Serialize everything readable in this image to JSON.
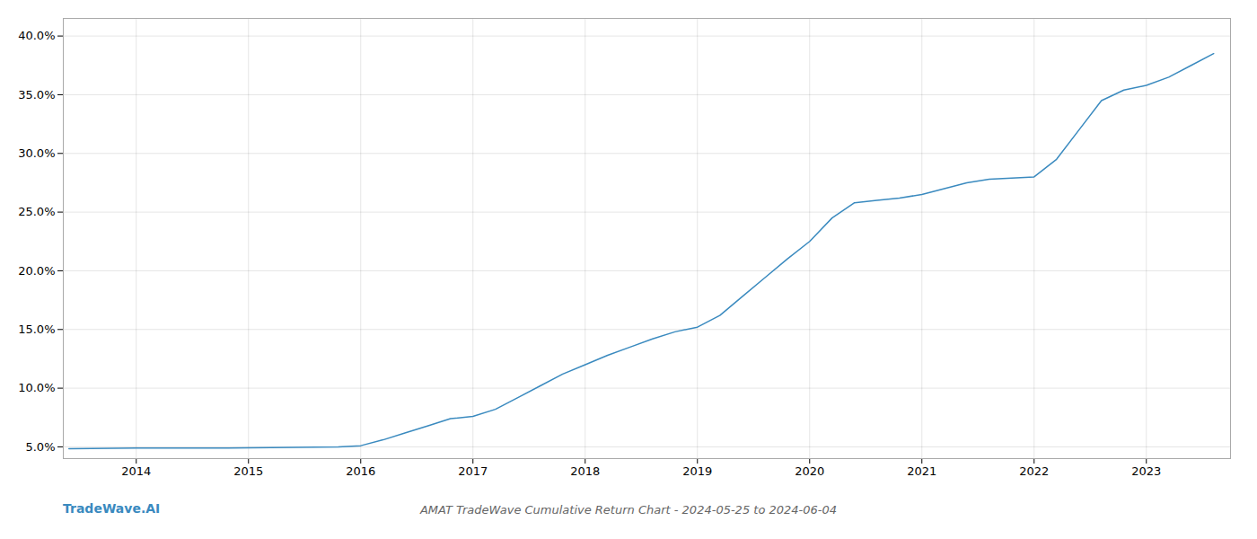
{
  "chart_data": {
    "type": "line",
    "title": "AMAT TradeWave Cumulative Return Chart - 2024-05-25 to 2024-06-04",
    "annotations": [
      "TradeWave.AI"
    ],
    "color": "#3a8abf",
    "grid": true,
    "x": [
      2013.4,
      2013.6,
      2013.8,
      2014.0,
      2014.2,
      2014.4,
      2014.6,
      2014.8,
      2015.0,
      2015.2,
      2015.4,
      2015.6,
      2015.8,
      2016.0,
      2016.2,
      2016.4,
      2016.6,
      2016.8,
      2017.0,
      2017.2,
      2017.4,
      2017.6,
      2017.8,
      2018.0,
      2018.2,
      2018.4,
      2018.6,
      2018.8,
      2019.0,
      2019.2,
      2019.4,
      2019.6,
      2019.8,
      2020.0,
      2020.2,
      2020.4,
      2020.6,
      2020.8,
      2021.0,
      2021.2,
      2021.4,
      2021.6,
      2021.8,
      2022.0,
      2022.2,
      2022.4,
      2022.6,
      2022.8,
      2023.0,
      2023.2,
      2023.4,
      2023.6
    ],
    "values": [
      4.85,
      4.87,
      4.88,
      4.89,
      4.9,
      4.9,
      4.9,
      4.9,
      4.92,
      4.94,
      4.95,
      4.97,
      5.0,
      5.1,
      5.6,
      6.2,
      6.8,
      7.4,
      7.6,
      8.2,
      9.2,
      10.2,
      11.2,
      12.0,
      12.8,
      13.5,
      14.2,
      14.8,
      15.2,
      16.2,
      17.8,
      19.4,
      21.0,
      22.5,
      24.5,
      25.8,
      26.0,
      26.2,
      26.5,
      27.0,
      27.5,
      27.8,
      27.9,
      28.0,
      29.5,
      32.0,
      34.5,
      35.4,
      35.8,
      36.5,
      37.5,
      38.5
    ],
    "xlim": [
      2013.35,
      2023.75
    ],
    "xticks": [
      2014,
      2015,
      2016,
      2017,
      2018,
      2019,
      2020,
      2021,
      2022,
      2023
    ],
    "ylim": [
      4.0,
      41.5
    ],
    "yticks": [
      {
        "value": 5.0,
        "label": "5.0%"
      },
      {
        "value": 10.0,
        "label": "10.0%"
      },
      {
        "value": 15.0,
        "label": "15.0%"
      },
      {
        "value": 20.0,
        "label": "20.0%"
      },
      {
        "value": 25.0,
        "label": "25.0%"
      },
      {
        "value": 30.0,
        "label": "30.0%"
      },
      {
        "value": 35.0,
        "label": "35.0%"
      },
      {
        "value": 40.0,
        "label": "40.0%"
      }
    ]
  }
}
